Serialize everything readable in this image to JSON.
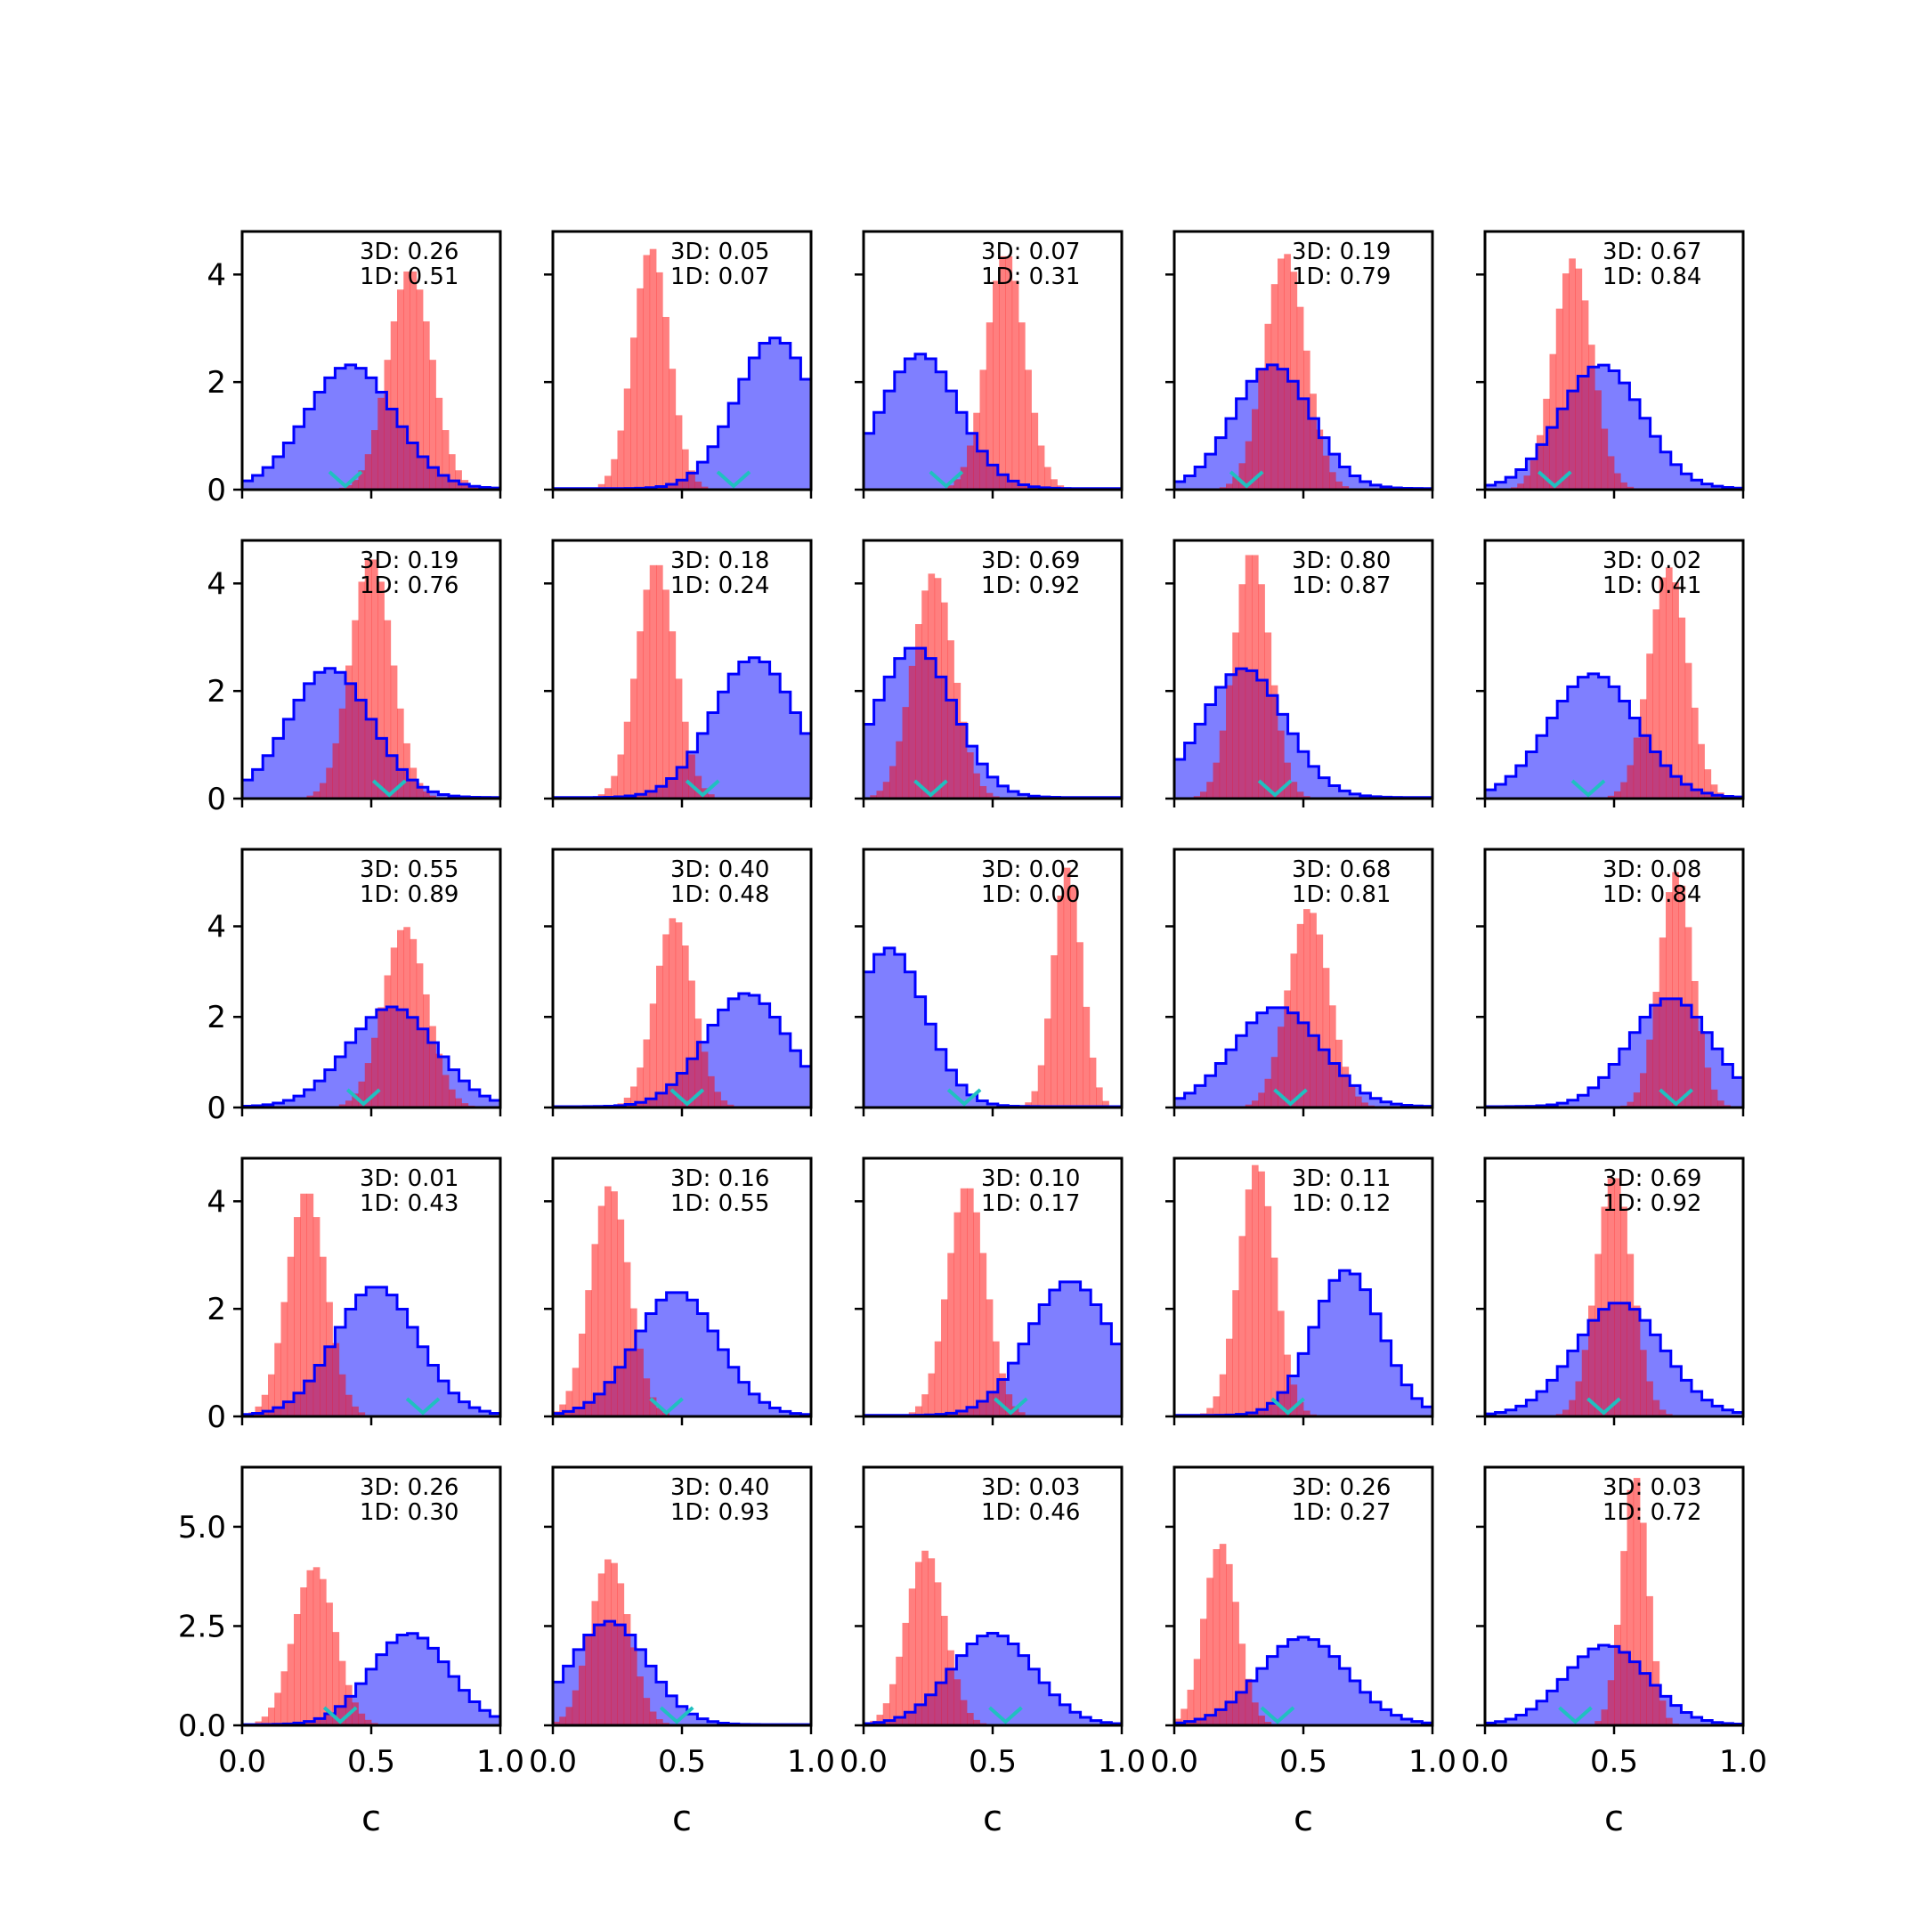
{
  "figure": {
    "xlabel": "c",
    "colors": {
      "blue_fill": "#0000ff",
      "blue_alpha": 0.5,
      "red_fill": "#ff0000",
      "red_alpha": 0.5,
      "blue_edge": "#0000ff",
      "marker": "#20c0c0",
      "axes": "#000000"
    }
  },
  "chart_data": {
    "type": "histogram-grid",
    "rows": 5,
    "cols": 5,
    "xlim": [
      0,
      1
    ],
    "xticks": [
      "0.0",
      "0.5",
      "1.0"
    ],
    "row_ylim": [
      [
        0,
        4.8
      ],
      [
        0,
        4.8
      ],
      [
        0,
        5.7
      ],
      [
        0,
        4.8
      ],
      [
        0,
        6.5
      ]
    ],
    "row_yticks": [
      [
        "0",
        "2",
        "4"
      ],
      [
        "0",
        "2",
        "4"
      ],
      [
        "0",
        "2",
        "4"
      ],
      [
        "0",
        "2",
        "4"
      ],
      [
        "0.0",
        "2.5",
        "5.0"
      ]
    ],
    "row_ytick_values": [
      [
        0,
        2,
        4
      ],
      [
        0,
        2,
        4
      ],
      [
        0,
        2,
        4
      ],
      [
        0,
        2,
        4
      ],
      [
        0,
        2.5,
        5.0
      ]
    ],
    "series": [
      {
        "name": "blue step histogram",
        "style": "filled step, blue edge"
      },
      {
        "name": "red histogram",
        "style": "filled bars, red"
      }
    ],
    "panels": [
      {
        "label_3d": "3D: 0.26",
        "label_1d": "1D: 0.51",
        "blue": {
          "mu": 0.42,
          "sigma": 0.17,
          "peak": 2.3
        },
        "red": {
          "mu": 0.65,
          "sigma": 0.085,
          "peak": 4.1
        },
        "marker": 0.4
      },
      {
        "label_3d": "3D: 0.05",
        "label_1d": "1D: 0.07",
        "blue": {
          "mu": 0.86,
          "sigma": 0.15,
          "peak": 2.8
        },
        "red": {
          "mu": 0.38,
          "sigma": 0.07,
          "peak": 4.5
        },
        "marker": 0.7
      },
      {
        "label_3d": "3D: 0.07",
        "label_1d": "1D: 0.31",
        "blue": {
          "mu": 0.22,
          "sigma": 0.15,
          "peak": 2.5
        },
        "red": {
          "mu": 0.55,
          "sigma": 0.075,
          "peak": 4.4
        },
        "marker": 0.32
      },
      {
        "label_3d": "3D: 0.19",
        "label_1d": "1D: 0.79",
        "blue": {
          "mu": 0.38,
          "sigma": 0.15,
          "peak": 2.3
        },
        "red": {
          "mu": 0.43,
          "sigma": 0.08,
          "peak": 4.4
        },
        "marker": 0.28
      },
      {
        "label_3d": "3D: 0.67",
        "label_1d": "1D: 0.84",
        "blue": {
          "mu": 0.45,
          "sigma": 0.16,
          "peak": 2.3
        },
        "red": {
          "mu": 0.34,
          "sigma": 0.075,
          "peak": 4.3
        },
        "marker": 0.27
      },
      {
        "label_3d": "3D: 0.19",
        "label_1d": "1D: 0.76",
        "blue": {
          "mu": 0.34,
          "sigma": 0.16,
          "peak": 2.4
        },
        "red": {
          "mu": 0.5,
          "sigma": 0.08,
          "peak": 4.5
        },
        "marker": 0.57
      },
      {
        "label_3d": "3D: 0.18",
        "label_1d": "1D: 0.24",
        "blue": {
          "mu": 0.78,
          "sigma": 0.16,
          "peak": 2.6
        },
        "red": {
          "mu": 0.4,
          "sigma": 0.075,
          "peak": 4.4
        },
        "marker": 0.58
      },
      {
        "label_3d": "3D: 0.69",
        "label_1d": "1D: 0.92",
        "blue": {
          "mu": 0.2,
          "sigma": 0.15,
          "peak": 2.8
        },
        "red": {
          "mu": 0.27,
          "sigma": 0.08,
          "peak": 4.2
        },
        "marker": 0.26
      },
      {
        "label_3d": "3D: 0.80",
        "label_1d": "1D: 0.87",
        "blue": {
          "mu": 0.27,
          "sigma": 0.16,
          "peak": 2.4
        },
        "red": {
          "mu": 0.3,
          "sigma": 0.07,
          "peak": 4.6
        },
        "marker": 0.39
      },
      {
        "label_3d": "3D: 0.02",
        "label_1d": "1D: 0.41",
        "blue": {
          "mu": 0.42,
          "sigma": 0.17,
          "peak": 2.3
        },
        "red": {
          "mu": 0.71,
          "sigma": 0.075,
          "peak": 4.3
        },
        "marker": 0.4
      },
      {
        "label_3d": "3D: 0.55",
        "label_1d": "1D: 0.89",
        "blue": {
          "mu": 0.58,
          "sigma": 0.17,
          "peak": 2.2
        },
        "red": {
          "mu": 0.63,
          "sigma": 0.085,
          "peak": 4.0
        },
        "marker": 0.47
      },
      {
        "label_3d": "3D: 0.40",
        "label_1d": "1D: 0.48",
        "blue": {
          "mu": 0.75,
          "sigma": 0.16,
          "peak": 2.5
        },
        "red": {
          "mu": 0.47,
          "sigma": 0.075,
          "peak": 4.2
        },
        "marker": 0.52
      },
      {
        "label_3d": "3D: 0.02",
        "label_1d": "1D: 0.00",
        "blue": {
          "mu": 0.1,
          "sigma": 0.14,
          "peak": 3.5
        },
        "red": {
          "mu": 0.79,
          "sigma": 0.055,
          "peak": 5.3
        },
        "marker": 0.39
      },
      {
        "label_3d": "3D: 0.68",
        "label_1d": "1D: 0.81",
        "blue": {
          "mu": 0.4,
          "sigma": 0.17,
          "peak": 2.2
        },
        "red": {
          "mu": 0.52,
          "sigma": 0.08,
          "peak": 4.4
        },
        "marker": 0.45
      },
      {
        "label_3d": "3D: 0.08",
        "label_1d": "1D: 0.84",
        "blue": {
          "mu": 0.72,
          "sigma": 0.16,
          "peak": 2.4
        },
        "red": {
          "mu": 0.74,
          "sigma": 0.065,
          "peak": 5.2
        },
        "marker": 0.74
      },
      {
        "label_3d": "3D: 0.01",
        "label_1d": "1D: 0.43",
        "blue": {
          "mu": 0.52,
          "sigma": 0.16,
          "peak": 2.4
        },
        "red": {
          "mu": 0.25,
          "sigma": 0.075,
          "peak": 4.2
        },
        "marker": 0.7
      },
      {
        "label_3d": "3D: 0.16",
        "label_1d": "1D: 0.55",
        "blue": {
          "mu": 0.48,
          "sigma": 0.16,
          "peak": 2.3
        },
        "red": {
          "mu": 0.22,
          "sigma": 0.075,
          "peak": 4.3
        },
        "marker": 0.44
      },
      {
        "label_3d": "3D: 0.10",
        "label_1d": "1D: 0.17",
        "blue": {
          "mu": 0.8,
          "sigma": 0.16,
          "peak": 2.5
        },
        "red": {
          "mu": 0.4,
          "sigma": 0.075,
          "peak": 4.3
        },
        "marker": 0.57
      },
      {
        "label_3d": "3D: 0.11",
        "label_1d": "1D: 0.12",
        "blue": {
          "mu": 0.67,
          "sigma": 0.13,
          "peak": 2.7
        },
        "red": {
          "mu": 0.32,
          "sigma": 0.07,
          "peak": 4.7
        },
        "marker": 0.44
      },
      {
        "label_3d": "3D: 0.69",
        "label_1d": "1D: 0.92",
        "blue": {
          "mu": 0.52,
          "sigma": 0.17,
          "peak": 2.1
        },
        "red": {
          "mu": 0.5,
          "sigma": 0.07,
          "peak": 4.5
        },
        "marker": 0.46
      },
      {
        "label_3d": "3D: 0.26",
        "label_1d": "1D: 0.30",
        "blue": {
          "mu": 0.65,
          "sigma": 0.15,
          "peak": 2.3
        },
        "red": {
          "mu": 0.28,
          "sigma": 0.08,
          "peak": 4.0
        },
        "marker": 0.38
      },
      {
        "label_3d": "3D: 0.40",
        "label_1d": "1D: 0.93",
        "blue": {
          "mu": 0.22,
          "sigma": 0.15,
          "peak": 2.6
        },
        "red": {
          "mu": 0.22,
          "sigma": 0.075,
          "peak": 4.2
        },
        "marker": 0.48
      },
      {
        "label_3d": "3D: 0.03",
        "label_1d": "1D: 0.46",
        "blue": {
          "mu": 0.5,
          "sigma": 0.16,
          "peak": 2.3
        },
        "red": {
          "mu": 0.24,
          "sigma": 0.075,
          "peak": 4.4
        },
        "marker": 0.55
      },
      {
        "label_3d": "3D: 0.26",
        "label_1d": "1D: 0.27",
        "blue": {
          "mu": 0.5,
          "sigma": 0.17,
          "peak": 2.2
        },
        "red": {
          "mu": 0.18,
          "sigma": 0.065,
          "peak": 4.6
        },
        "marker": 0.4
      },
      {
        "label_3d": "3D: 0.03",
        "label_1d": "1D: 0.72",
        "blue": {
          "mu": 0.47,
          "sigma": 0.16,
          "peak": 2.0
        },
        "red": {
          "mu": 0.58,
          "sigma": 0.05,
          "peak": 6.3
        },
        "marker": 0.35
      }
    ]
  }
}
